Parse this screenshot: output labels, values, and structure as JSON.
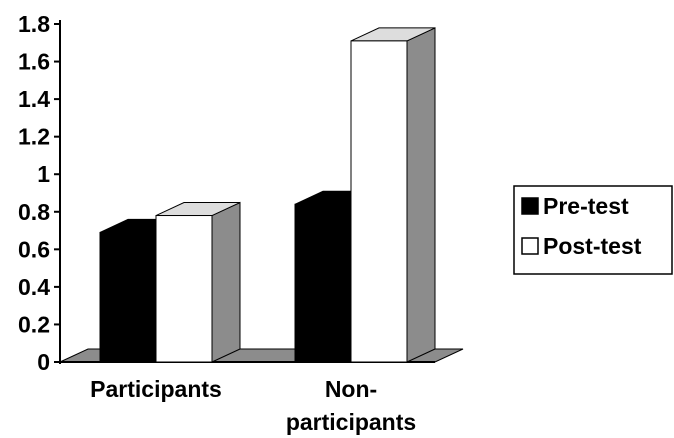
{
  "chart_data": {
    "type": "bar",
    "style": "3d-clustered-column",
    "categories": [
      "Participants",
      "Non-participants"
    ],
    "category_label_lines": [
      [
        "Participants"
      ],
      [
        "Non-",
        "participants"
      ]
    ],
    "series": [
      {
        "name": "Pre-test",
        "values": [
          0.69,
          0.84
        ],
        "color": "#000000"
      },
      {
        "name": "Post-test",
        "values": [
          0.78,
          1.71
        ],
        "color": "#ffffff"
      }
    ],
    "ylim": [
      0,
      1.8
    ],
    "yticks": [
      "0",
      "0.2",
      "0.4",
      "0.6",
      "0.8",
      "1",
      "1.2",
      "1.4",
      "1.6",
      "1.8"
    ],
    "title": "",
    "xlabel": "",
    "ylabel": "",
    "grid": false,
    "legend_position": "right",
    "colors": {
      "bar_side": "#8c8c8c",
      "floor": "#8c8c8c",
      "outline": "#000000"
    }
  }
}
